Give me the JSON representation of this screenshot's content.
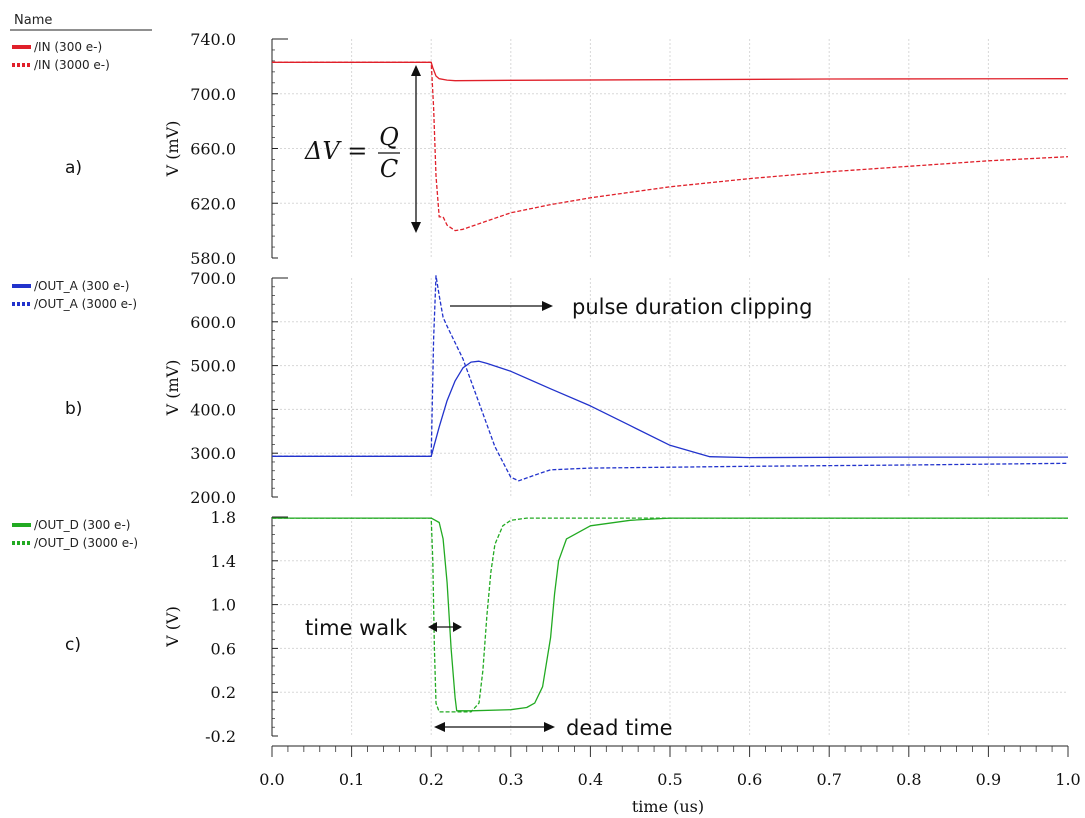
{
  "legend": {
    "title": "Name"
  },
  "colors": {
    "IN": "#e0202a",
    "OUT_A": "#2233cc",
    "OUT_D": "#22aa22"
  },
  "chart_data": [
    {
      "type": "line",
      "panel_label": "a)",
      "ylabel": "V (mV)",
      "ylim": [
        580,
        740
      ],
      "yticks": [
        "740.0",
        "700.0",
        "660.0",
        "620.0",
        "580.0"
      ],
      "xlim": [
        0,
        1
      ],
      "grid": true,
      "color": "#e0202a",
      "series": [
        {
          "name": "/IN (300 e-)",
          "style": "solid",
          "x": [
            0,
            0.2,
            0.202,
            0.206,
            0.21,
            0.22,
            0.23,
            0.3,
            0.5,
            0.7,
            1.0
          ],
          "y": [
            723,
            723,
            719,
            713,
            711,
            710,
            709.5,
            709.8,
            710.3,
            710.8,
            711
          ]
        },
        {
          "name": "/IN (3000 e-)",
          "style": "dashed",
          "x": [
            0,
            0.2,
            0.203,
            0.206,
            0.21,
            0.215,
            0.22,
            0.23,
            0.24,
            0.25,
            0.27,
            0.3,
            0.35,
            0.4,
            0.5,
            0.6,
            0.7,
            0.8,
            0.9,
            1.0
          ],
          "y": [
            723,
            723,
            690,
            640,
            610,
            610,
            604,
            600,
            601,
            603,
            607,
            613,
            619,
            624,
            632,
            638,
            643,
            647,
            651,
            654
          ]
        }
      ],
      "annotation": {
        "equation_lhs": "ΔV =",
        "equation_num": "Q",
        "equation_den": "C"
      }
    },
    {
      "type": "line",
      "panel_label": "b)",
      "ylabel": "V (mV)",
      "ylim": [
        200,
        700
      ],
      "yticks": [
        "700.0",
        "600.0",
        "500.0",
        "400.0",
        "300.0",
        "200.0"
      ],
      "xlim": [
        0,
        1
      ],
      "grid": true,
      "color": "#2233cc",
      "series": [
        {
          "name": "/OUT_A (300 e-)",
          "style": "solid",
          "x": [
            0,
            0.2,
            0.21,
            0.22,
            0.23,
            0.24,
            0.25,
            0.26,
            0.27,
            0.3,
            0.35,
            0.4,
            0.45,
            0.5,
            0.55,
            0.6,
            0.8,
            1.0
          ],
          "y": [
            293,
            293,
            360,
            420,
            465,
            495,
            508,
            510,
            505,
            487,
            447,
            408,
            363,
            318,
            292,
            290,
            291,
            291
          ]
        },
        {
          "name": "/OUT_A (3000 e-)",
          "style": "dashed",
          "x": [
            0,
            0.2,
            0.203,
            0.206,
            0.21,
            0.215,
            0.22,
            0.24,
            0.26,
            0.28,
            0.3,
            0.31,
            0.33,
            0.35,
            0.4,
            0.5,
            0.6,
            0.8,
            1.0
          ],
          "y": [
            293,
            293,
            560,
            705,
            660,
            610,
            590,
            515,
            415,
            315,
            245,
            237,
            250,
            262,
            266,
            268,
            270,
            273,
            277
          ]
        }
      ],
      "annotation": {
        "text": "pulse duration clipping"
      }
    },
    {
      "type": "line",
      "panel_label": "c)",
      "ylabel": "V (V)",
      "ylim": [
        -0.2,
        1.8
      ],
      "yticks": [
        "1.8",
        "1.4",
        "1.0",
        "0.6",
        "0.2",
        "-0.2"
      ],
      "xlim": [
        0,
        1
      ],
      "xticks": [
        "0.0",
        "0.1",
        "0.2",
        "0.3",
        "0.4",
        "0.5",
        "0.6",
        "0.7",
        "0.8",
        "0.9",
        "1.0"
      ],
      "xlabel": "time (us)",
      "grid": true,
      "color": "#22aa22",
      "series": [
        {
          "name": "/OUT_D (300 e-)",
          "style": "solid",
          "x": [
            0,
            0.2,
            0.21,
            0.215,
            0.22,
            0.225,
            0.23,
            0.232,
            0.25,
            0.3,
            0.32,
            0.33,
            0.34,
            0.35,
            0.355,
            0.36,
            0.37,
            0.4,
            0.45,
            0.5,
            1.0
          ],
          "y": [
            1.79,
            1.79,
            1.75,
            1.6,
            1.2,
            0.6,
            0.15,
            0.03,
            0.03,
            0.04,
            0.06,
            0.1,
            0.25,
            0.7,
            1.1,
            1.4,
            1.6,
            1.72,
            1.77,
            1.79,
            1.79
          ]
        },
        {
          "name": "/OUT_D (3000 e-)",
          "style": "dashed",
          "x": [
            0,
            0.2,
            0.202,
            0.204,
            0.206,
            0.21,
            0.25,
            0.26,
            0.265,
            0.27,
            0.275,
            0.28,
            0.29,
            0.3,
            0.32,
            1.0
          ],
          "y": [
            1.79,
            1.79,
            1.4,
            0.6,
            0.1,
            0.02,
            0.02,
            0.1,
            0.4,
            0.9,
            1.3,
            1.55,
            1.72,
            1.77,
            1.79,
            1.79
          ]
        }
      ],
      "annotations": [
        {
          "text": "time walk"
        },
        {
          "text": "dead time"
        }
      ]
    }
  ]
}
